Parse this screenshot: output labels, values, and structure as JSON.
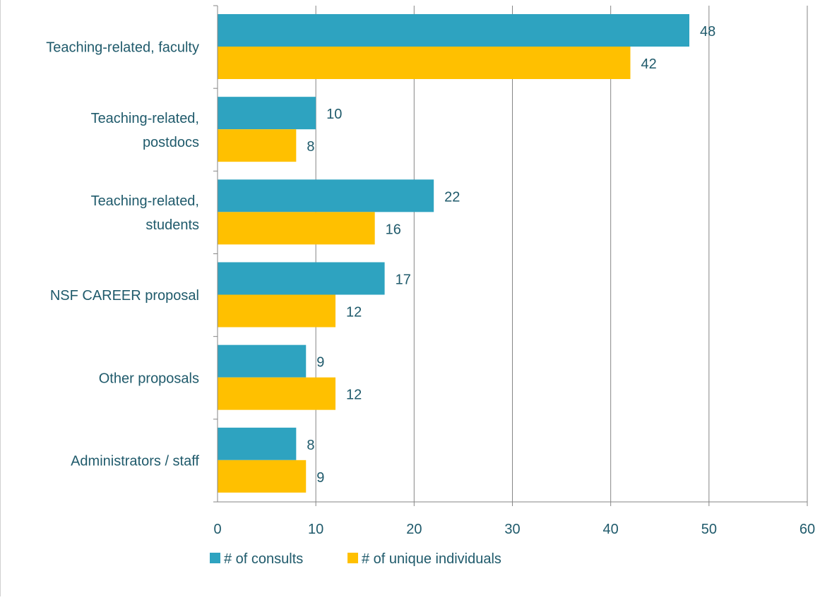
{
  "chart_data": {
    "type": "bar",
    "orientation": "horizontal",
    "categories": [
      [
        "Teaching-related, faculty"
      ],
      [
        "Teaching-related,",
        "postdocs"
      ],
      [
        "Teaching-related,",
        "students"
      ],
      [
        "NSF CAREER proposal"
      ],
      [
        "Other proposals"
      ],
      [
        "Administrators / staff"
      ]
    ],
    "series": [
      {
        "name": "# of consults",
        "color": "#2ea3c0",
        "values": [
          48,
          10,
          22,
          17,
          9,
          8
        ]
      },
      {
        "name": "# of unique individuals",
        "color": "#ffc000",
        "values": [
          42,
          8,
          16,
          12,
          12,
          9
        ]
      }
    ],
    "xlim": [
      0,
      60
    ],
    "x_ticks": [
      0,
      10,
      20,
      30,
      40,
      50,
      60
    ],
    "grid": true,
    "legend_position": "bottom",
    "data_labels": true,
    "text_color": "#1f5a6b"
  }
}
